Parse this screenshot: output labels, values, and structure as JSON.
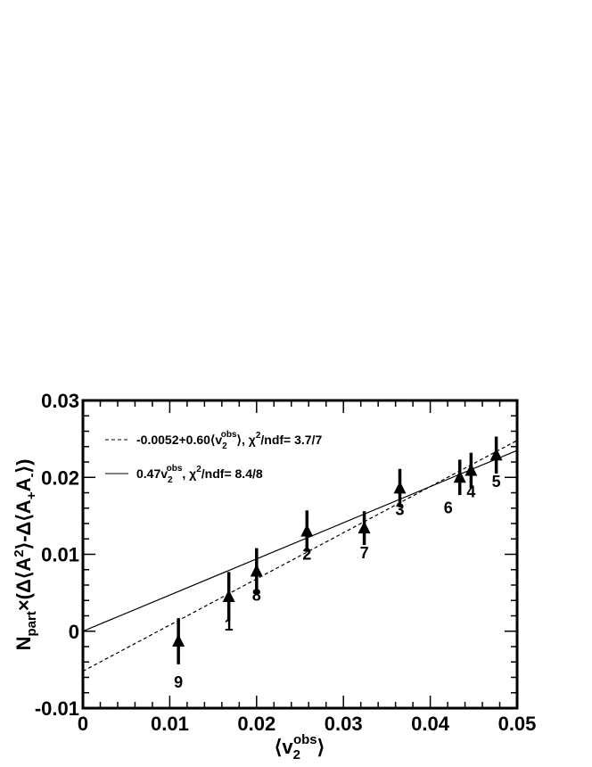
{
  "chart_data": {
    "type": "scatter",
    "title": "",
    "xlabel": "⟨v2obs⟩",
    "xlabel_parts": {
      "main": "⟨v",
      "sub": "2",
      "sup": "obs",
      "close": "⟩"
    },
    "ylabel": "Npart×(Δ⟨A2⟩-Δ⟨A+A-⟩)",
    "ylabel_parts": {
      "n": "N",
      "part": "part",
      "times": "×(Δ⟨A",
      "sq": "2",
      "mid": "⟩-Δ⟨A",
      "plus": "+",
      "a": "A",
      "minus": "-",
      "end": "⟩)"
    },
    "xlim": [
      0,
      0.05
    ],
    "ylim": [
      -0.01,
      0.03
    ],
    "x_ticks": [
      "0",
      "0.01",
      "0.02",
      "0.03",
      "0.04",
      "0.05"
    ],
    "x_tick_values": [
      0,
      0.01,
      0.02,
      0.03,
      0.04,
      0.05
    ],
    "y_ticks": [
      "-0.01",
      "0",
      "0.01",
      "0.02",
      "0.03"
    ],
    "y_tick_values": [
      -0.01,
      0,
      0.01,
      0.02,
      0.03
    ],
    "grid": false,
    "marker": "filled-triangle",
    "points": [
      {
        "label": "1",
        "x": 0.0168,
        "y": 0.0045,
        "err": 0.0032
      },
      {
        "label": "2",
        "x": 0.0258,
        "y": 0.013,
        "err": 0.0027
      },
      {
        "label": "3",
        "x": 0.0365,
        "y": 0.0186,
        "err": 0.0025
      },
      {
        "label": "4",
        "x": 0.0447,
        "y": 0.0209,
        "err": 0.0023
      },
      {
        "label": "5",
        "x": 0.0476,
        "y": 0.0229,
        "err": 0.0024
      },
      {
        "label": "6",
        "x": 0.0434,
        "y": 0.02,
        "err": 0.0023
      },
      {
        "label": "7",
        "x": 0.0324,
        "y": 0.0134,
        "err": 0.0022
      },
      {
        "label": "8",
        "x": 0.02,
        "y": 0.0078,
        "err": 0.003
      },
      {
        "label": "9",
        "x": 0.011,
        "y": -0.0013,
        "err": 0.003
      }
    ],
    "fits": [
      {
        "style": "dashed",
        "intercept": -0.0052,
        "slope": 0.6,
        "legend": {
          "pre": "-0.0052+0.60⟨v",
          "sub": "2",
          "sup": "obs",
          "post": "⟩, χ",
          "chisup": "2",
          "tail": "/ndf= 3.7/7"
        }
      },
      {
        "style": "solid",
        "intercept": 0,
        "slope": 0.47,
        "legend": {
          "pre": "0.47v",
          "sub": "2",
          "sup": "obs",
          "post": ", χ",
          "chisup": "2",
          "tail": "/ndf= 8.4/8"
        }
      }
    ],
    "legend_position": "top-left"
  }
}
